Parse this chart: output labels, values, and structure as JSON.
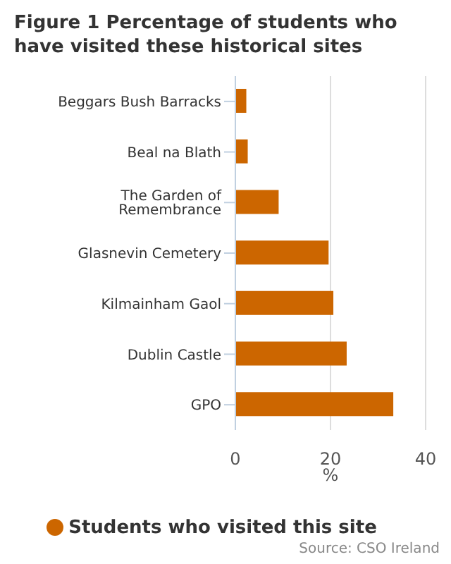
{
  "chart_data": {
    "type": "bar",
    "orientation": "horizontal",
    "title": "Figure 1 Percentage of students who have visited these historical sites",
    "xlabel": "%",
    "categories": [
      "Beggars Bush Barracks",
      "Beal na Blath",
      "The Garden of Remembrance",
      "Glasnevin Cemetery",
      "Kilmainham Gaol",
      "Dublin Castle",
      "GPO"
    ],
    "series": [
      {
        "name": "Students who visited this site",
        "color": "#cc6600",
        "values": [
          2.3,
          2.6,
          9.1,
          19.6,
          20.6,
          23.4,
          33.2
        ]
      }
    ],
    "xlim": [
      0,
      40
    ],
    "xticks": [
      0,
      20,
      40
    ],
    "grid": "x",
    "legend": "bottom",
    "annotations": [
      "Source: CSO Ireland"
    ]
  }
}
